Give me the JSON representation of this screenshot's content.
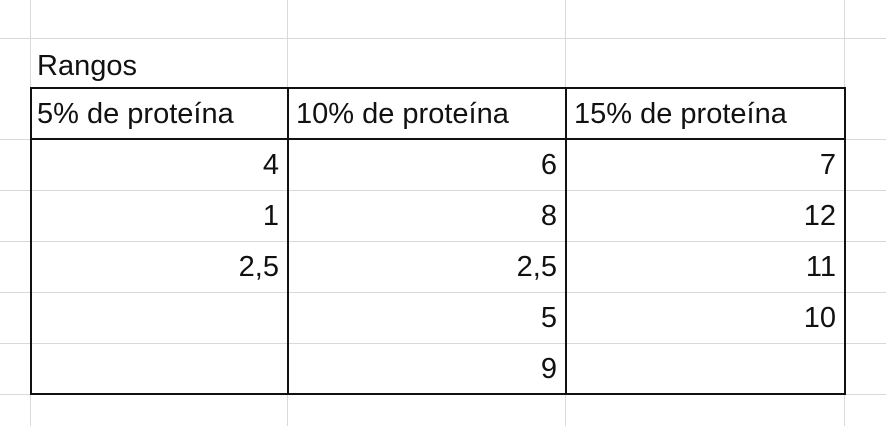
{
  "sheet": {
    "title_cell": "Rangos",
    "headers": [
      "5% de proteína",
      "10% de proteína",
      "15% de proteína"
    ],
    "rows": [
      [
        "4",
        "6",
        "7"
      ],
      [
        "1",
        "8",
        "12"
      ],
      [
        "2,5",
        "2,5",
        "11"
      ],
      [
        "",
        "5",
        "10"
      ],
      [
        "",
        "9",
        ""
      ]
    ]
  }
}
